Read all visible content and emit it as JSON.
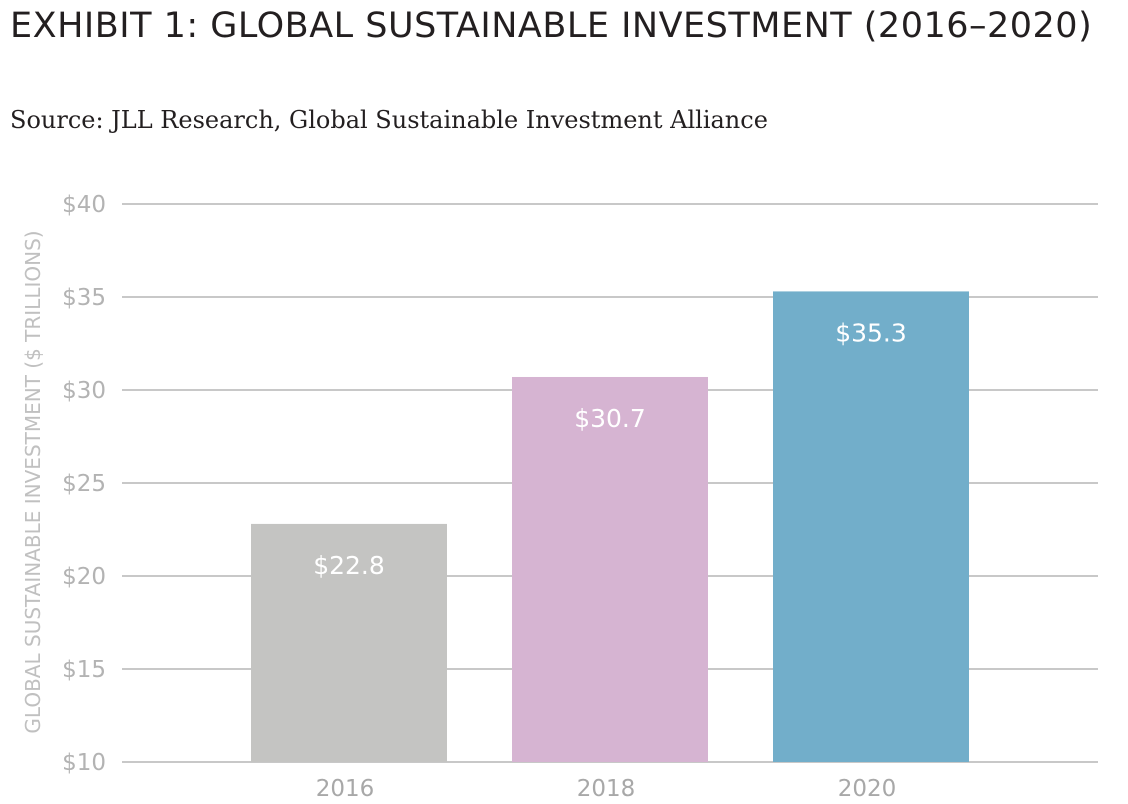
{
  "title": "EXHIBIT 1: GLOBAL SUSTAINABLE INVESTMENT (2016–2020)",
  "subtitle": "Source: JLL Research, Global Sustainable Investment Alliance",
  "chart_data": {
    "type": "bar",
    "categories": [
      "2016",
      "2018",
      "2020"
    ],
    "values": [
      22.8,
      30.7,
      35.3
    ],
    "value_labels": [
      "$22.8",
      "$30.7",
      "$35.3"
    ],
    "bar_colors": [
      "#c4c4c2",
      "#d6b4d2",
      "#72aeca"
    ],
    "ylabel": "GLOBAL SUSTAINABLE INVESTMENT ($ TRILLIONS)",
    "xlabel": "",
    "ylim": [
      10,
      40
    ],
    "yticks": [
      10,
      15,
      20,
      25,
      30,
      35,
      40
    ],
    "ytick_labels": [
      "$10",
      "$15",
      "$20",
      "$25",
      "$30",
      "$35",
      "$40"
    ],
    "grid": true,
    "legend": "none"
  }
}
